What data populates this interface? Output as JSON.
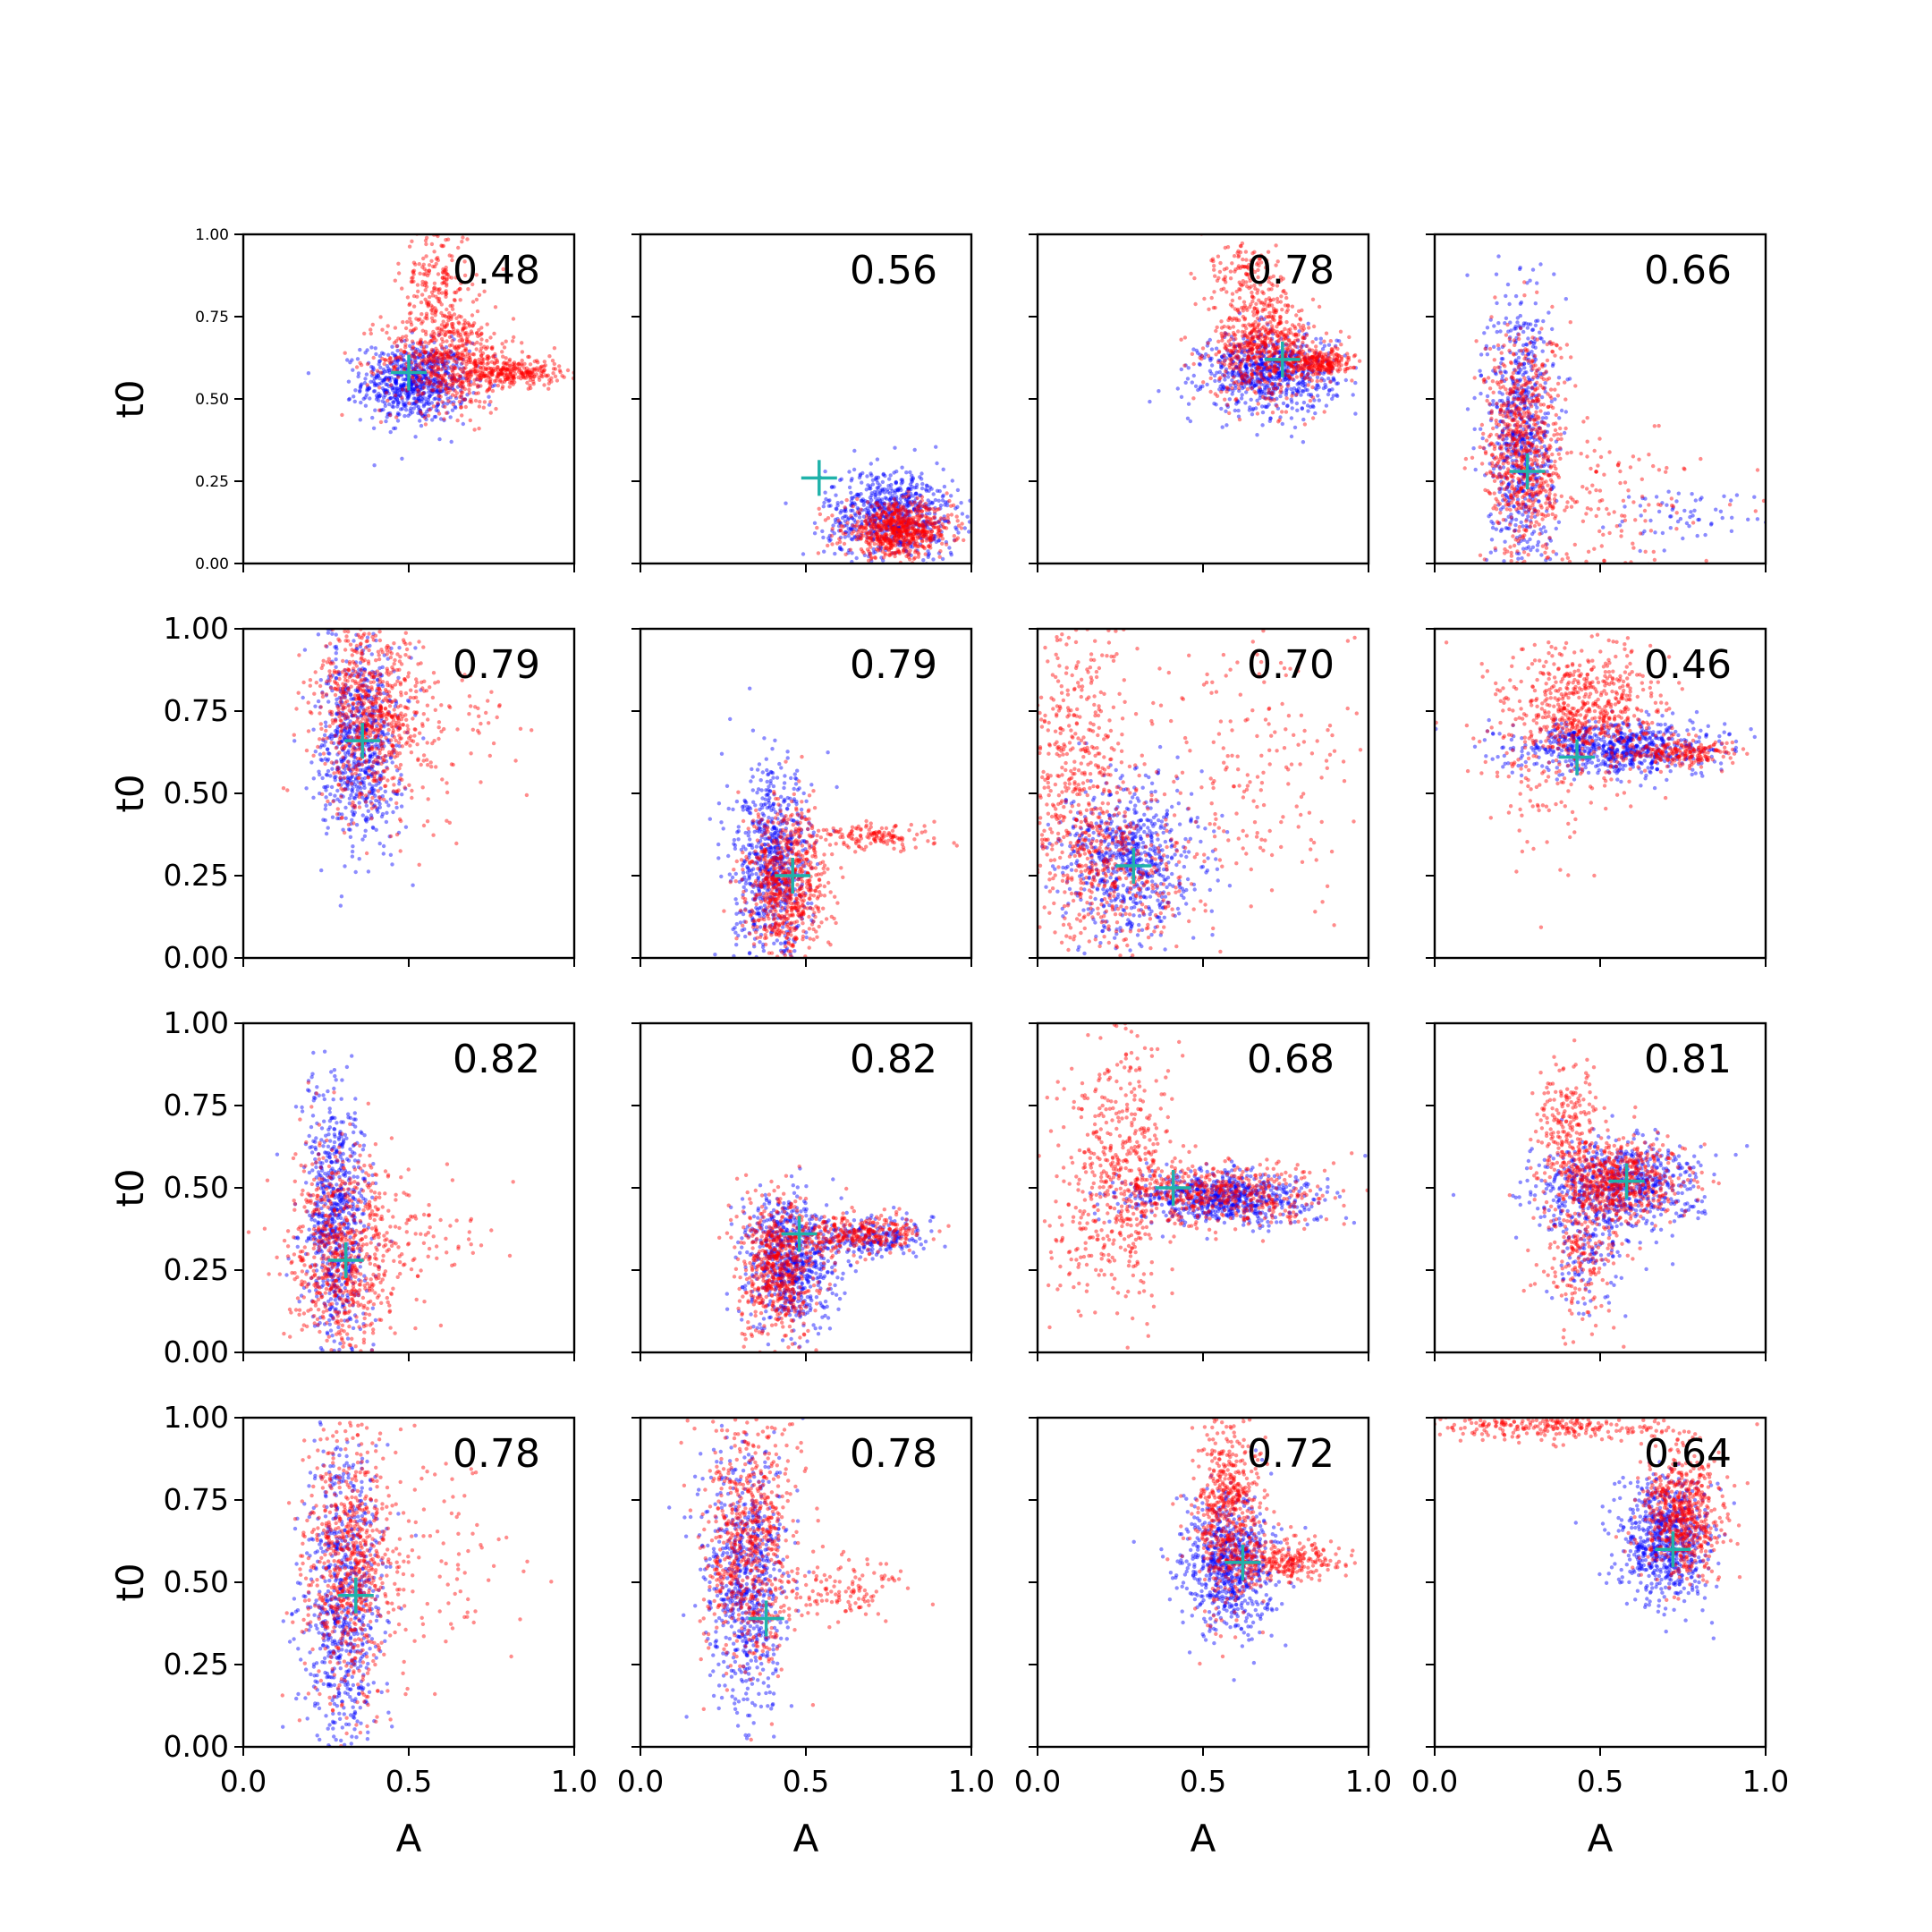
{
  "chart_data": [
    {
      "type": "scatter",
      "ylabel": "t0",
      "xlabel": "",
      "annotation": "0.48",
      "marker": {
        "x": 0.5,
        "y": 0.58
      },
      "xlim": [
        0,
        1
      ],
      "ylim": [
        0,
        1
      ],
      "clusters": {
        "blue": [
          {
            "cx": 0.52,
            "cy": 0.55,
            "sx": 0.08,
            "sy": 0.06,
            "n": 700
          }
        ],
        "red": [
          {
            "cx": 0.62,
            "cy": 0.62,
            "sx": 0.1,
            "sy": 0.08,
            "n": 600
          },
          {
            "cx": 0.58,
            "cy": 0.85,
            "sx": 0.05,
            "sy": 0.1,
            "n": 200
          },
          {
            "cx": 0.82,
            "cy": 0.58,
            "sx": 0.07,
            "sy": 0.02,
            "n": 250
          }
        ]
      }
    },
    {
      "type": "scatter",
      "ylabel": "",
      "xlabel": "",
      "annotation": "0.56",
      "marker": {
        "x": 0.54,
        "y": 0.26
      },
      "xlim": [
        0,
        1
      ],
      "ylim": [
        0,
        1
      ],
      "clusters": {
        "blue": [
          {
            "cx": 0.76,
            "cy": 0.15,
            "sx": 0.1,
            "sy": 0.07,
            "n": 700
          }
        ],
        "red": [
          {
            "cx": 0.78,
            "cy": 0.1,
            "sx": 0.08,
            "sy": 0.04,
            "n": 700
          }
        ]
      }
    },
    {
      "type": "scatter",
      "ylabel": "",
      "xlabel": "",
      "annotation": "0.78",
      "marker": {
        "x": 0.74,
        "y": 0.62
      },
      "xlim": [
        0,
        1
      ],
      "ylim": [
        0,
        1
      ],
      "clusters": {
        "blue": [
          {
            "cx": 0.7,
            "cy": 0.58,
            "sx": 0.1,
            "sy": 0.06,
            "n": 700
          }
        ],
        "red": [
          {
            "cx": 0.68,
            "cy": 0.66,
            "sx": 0.08,
            "sy": 0.08,
            "n": 600
          },
          {
            "cx": 0.85,
            "cy": 0.61,
            "sx": 0.05,
            "sy": 0.02,
            "n": 250
          },
          {
            "cx": 0.62,
            "cy": 0.88,
            "sx": 0.05,
            "sy": 0.06,
            "n": 120
          }
        ]
      }
    },
    {
      "type": "scatter",
      "ylabel": "",
      "xlabel": "",
      "annotation": "0.66",
      "marker": {
        "x": 0.28,
        "y": 0.28
      },
      "xlim": [
        0,
        1
      ],
      "ylim": [
        0,
        1
      ],
      "clusters": {
        "blue": [
          {
            "cx": 0.26,
            "cy": 0.4,
            "sx": 0.05,
            "sy": 0.22,
            "n": 700
          },
          {
            "cx": 0.75,
            "cy": 0.15,
            "sx": 0.12,
            "sy": 0.04,
            "n": 60
          }
        ],
        "red": [
          {
            "cx": 0.27,
            "cy": 0.35,
            "sx": 0.06,
            "sy": 0.18,
            "n": 700
          },
          {
            "cx": 0.5,
            "cy": 0.2,
            "sx": 0.15,
            "sy": 0.12,
            "n": 150
          }
        ]
      }
    },
    {
      "type": "scatter",
      "ylabel": "t0",
      "xlabel": "",
      "annotation": "0.79",
      "marker": {
        "x": 0.36,
        "y": 0.66
      },
      "xlim": [
        0,
        1
      ],
      "ylim": [
        0,
        1
      ],
      "clusters": {
        "blue": [
          {
            "cx": 0.35,
            "cy": 0.65,
            "sx": 0.06,
            "sy": 0.15,
            "n": 700
          }
        ],
        "red": [
          {
            "cx": 0.38,
            "cy": 0.75,
            "sx": 0.08,
            "sy": 0.15,
            "n": 700
          },
          {
            "cx": 0.55,
            "cy": 0.7,
            "sx": 0.12,
            "sy": 0.12,
            "n": 120
          }
        ]
      }
    },
    {
      "type": "scatter",
      "ylabel": "",
      "xlabel": "",
      "annotation": "0.79",
      "marker": {
        "x": 0.46,
        "y": 0.25
      },
      "xlim": [
        0,
        1
      ],
      "ylim": [
        0,
        1
      ],
      "clusters": {
        "blue": [
          {
            "cx": 0.4,
            "cy": 0.28,
            "sx": 0.06,
            "sy": 0.14,
            "n": 700
          }
        ],
        "red": [
          {
            "cx": 0.44,
            "cy": 0.22,
            "sx": 0.06,
            "sy": 0.12,
            "n": 700
          },
          {
            "cx": 0.7,
            "cy": 0.37,
            "sx": 0.1,
            "sy": 0.02,
            "n": 150
          }
        ]
      }
    },
    {
      "type": "scatter",
      "ylabel": "",
      "xlabel": "",
      "annotation": "0.70",
      "marker": {
        "x": 0.29,
        "y": 0.28
      },
      "xlim": [
        0,
        1
      ],
      "ylim": [
        0,
        1
      ],
      "clusters": {
        "blue": [
          {
            "cx": 0.28,
            "cy": 0.3,
            "sx": 0.1,
            "sy": 0.12,
            "n": 700
          }
        ],
        "red": [
          {
            "cx": 0.12,
            "cy": 0.55,
            "sx": 0.08,
            "sy": 0.25,
            "n": 500
          },
          {
            "cx": 0.65,
            "cy": 0.55,
            "sx": 0.2,
            "sy": 0.2,
            "n": 200
          },
          {
            "cx": 0.25,
            "cy": 0.25,
            "sx": 0.1,
            "sy": 0.12,
            "n": 300
          }
        ]
      }
    },
    {
      "type": "scatter",
      "ylabel": "",
      "xlabel": "",
      "annotation": "0.46",
      "marker": {
        "x": 0.43,
        "y": 0.61
      },
      "xlim": [
        0,
        1
      ],
      "ylim": [
        0,
        1
      ],
      "clusters": {
        "blue": [
          {
            "cx": 0.55,
            "cy": 0.64,
            "sx": 0.15,
            "sy": 0.04,
            "n": 700
          }
        ],
        "red": [
          {
            "cx": 0.45,
            "cy": 0.75,
            "sx": 0.12,
            "sy": 0.1,
            "n": 600
          },
          {
            "cx": 0.35,
            "cy": 0.55,
            "sx": 0.1,
            "sy": 0.15,
            "n": 120
          },
          {
            "cx": 0.75,
            "cy": 0.62,
            "sx": 0.08,
            "sy": 0.02,
            "n": 200
          }
        ]
      }
    },
    {
      "type": "scatter",
      "ylabel": "t0",
      "xlabel": "",
      "annotation": "0.82",
      "marker": {
        "x": 0.31,
        "y": 0.28
      },
      "xlim": [
        0,
        1
      ],
      "ylim": [
        0,
        1
      ],
      "clusters": {
        "blue": [
          {
            "cx": 0.28,
            "cy": 0.4,
            "sx": 0.05,
            "sy": 0.2,
            "n": 700
          }
        ],
        "red": [
          {
            "cx": 0.3,
            "cy": 0.3,
            "sx": 0.08,
            "sy": 0.16,
            "n": 700
          },
          {
            "cx": 0.5,
            "cy": 0.35,
            "sx": 0.12,
            "sy": 0.1,
            "n": 100
          }
        ]
      }
    },
    {
      "type": "scatter",
      "ylabel": "",
      "xlabel": "",
      "annotation": "0.82",
      "marker": {
        "x": 0.48,
        "y": 0.36
      },
      "xlim": [
        0,
        1
      ],
      "ylim": [
        0,
        1
      ],
      "clusters": {
        "blue": [
          {
            "cx": 0.45,
            "cy": 0.28,
            "sx": 0.07,
            "sy": 0.1,
            "n": 700
          },
          {
            "cx": 0.72,
            "cy": 0.35,
            "sx": 0.08,
            "sy": 0.03,
            "n": 200
          }
        ],
        "red": [
          {
            "cx": 0.42,
            "cy": 0.26,
            "sx": 0.06,
            "sy": 0.1,
            "n": 600
          },
          {
            "cx": 0.65,
            "cy": 0.36,
            "sx": 0.1,
            "sy": 0.03,
            "n": 300
          }
        ]
      }
    },
    {
      "type": "scatter",
      "ylabel": "",
      "xlabel": "",
      "annotation": "0.68",
      "marker": {
        "x": 0.41,
        "y": 0.5
      },
      "xlim": [
        0,
        1
      ],
      "ylim": [
        0,
        1
      ],
      "clusters": {
        "blue": [
          {
            "cx": 0.55,
            "cy": 0.47,
            "sx": 0.14,
            "sy": 0.04,
            "n": 700
          }
        ],
        "red": [
          {
            "cx": 0.25,
            "cy": 0.6,
            "sx": 0.08,
            "sy": 0.18,
            "n": 400
          },
          {
            "cx": 0.55,
            "cy": 0.48,
            "sx": 0.16,
            "sy": 0.05,
            "n": 500
          },
          {
            "cx": 0.2,
            "cy": 0.3,
            "sx": 0.1,
            "sy": 0.12,
            "n": 120
          }
        ]
      }
    },
    {
      "type": "scatter",
      "ylabel": "",
      "xlabel": "",
      "annotation": "0.81",
      "marker": {
        "x": 0.58,
        "y": 0.52
      },
      "xlim": [
        0,
        1
      ],
      "ylim": [
        0,
        1
      ],
      "clusters": {
        "blue": [
          {
            "cx": 0.55,
            "cy": 0.5,
            "sx": 0.12,
            "sy": 0.07,
            "n": 700
          },
          {
            "cx": 0.45,
            "cy": 0.3,
            "sx": 0.05,
            "sy": 0.1,
            "n": 120
          }
        ],
        "red": [
          {
            "cx": 0.55,
            "cy": 0.52,
            "sx": 0.1,
            "sy": 0.06,
            "n": 600
          },
          {
            "cx": 0.4,
            "cy": 0.7,
            "sx": 0.05,
            "sy": 0.1,
            "n": 200
          },
          {
            "cx": 0.45,
            "cy": 0.3,
            "sx": 0.06,
            "sy": 0.1,
            "n": 200
          }
        ]
      }
    },
    {
      "type": "scatter",
      "ylabel": "t0",
      "xlabel": "A",
      "annotation": "0.78",
      "marker": {
        "x": 0.34,
        "y": 0.46
      },
      "xlim": [
        0,
        1
      ],
      "ylim": [
        0,
        1
      ],
      "clusters": {
        "blue": [
          {
            "cx": 0.3,
            "cy": 0.45,
            "sx": 0.06,
            "sy": 0.22,
            "n": 700
          }
        ],
        "red": [
          {
            "cx": 0.32,
            "cy": 0.55,
            "sx": 0.07,
            "sy": 0.22,
            "n": 700
          },
          {
            "cx": 0.55,
            "cy": 0.6,
            "sx": 0.15,
            "sy": 0.15,
            "n": 120
          }
        ]
      }
    },
    {
      "type": "scatter",
      "ylabel": "",
      "xlabel": "A",
      "annotation": "0.78",
      "marker": {
        "x": 0.38,
        "y": 0.39
      },
      "xlim": [
        0,
        1
      ],
      "ylim": [
        0,
        1
      ],
      "clusters": {
        "blue": [
          {
            "cx": 0.32,
            "cy": 0.5,
            "sx": 0.06,
            "sy": 0.2,
            "n": 700
          }
        ],
        "red": [
          {
            "cx": 0.33,
            "cy": 0.62,
            "sx": 0.07,
            "sy": 0.2,
            "n": 700
          },
          {
            "cx": 0.6,
            "cy": 0.48,
            "sx": 0.1,
            "sy": 0.05,
            "n": 120
          }
        ]
      }
    },
    {
      "type": "scatter",
      "ylabel": "",
      "xlabel": "A",
      "annotation": "0.72",
      "marker": {
        "x": 0.62,
        "y": 0.56
      },
      "xlim": [
        0,
        1
      ],
      "ylim": [
        0,
        1
      ],
      "clusters": {
        "blue": [
          {
            "cx": 0.58,
            "cy": 0.55,
            "sx": 0.07,
            "sy": 0.1,
            "n": 700
          }
        ],
        "red": [
          {
            "cx": 0.58,
            "cy": 0.72,
            "sx": 0.05,
            "sy": 0.16,
            "n": 600
          },
          {
            "cx": 0.75,
            "cy": 0.56,
            "sx": 0.08,
            "sy": 0.03,
            "n": 250
          }
        ]
      }
    },
    {
      "type": "scatter",
      "ylabel": "",
      "xlabel": "A",
      "annotation": "0.64",
      "marker": {
        "x": 0.72,
        "y": 0.6
      },
      "xlim": [
        0,
        1
      ],
      "ylim": [
        0,
        1
      ],
      "clusters": {
        "blue": [
          {
            "cx": 0.7,
            "cy": 0.62,
            "sx": 0.07,
            "sy": 0.09,
            "n": 700
          }
        ],
        "red": [
          {
            "cx": 0.75,
            "cy": 0.7,
            "sx": 0.06,
            "sy": 0.1,
            "n": 600
          },
          {
            "cx": 0.35,
            "cy": 0.97,
            "sx": 0.2,
            "sy": 0.02,
            "n": 250
          }
        ]
      }
    }
  ]
}
